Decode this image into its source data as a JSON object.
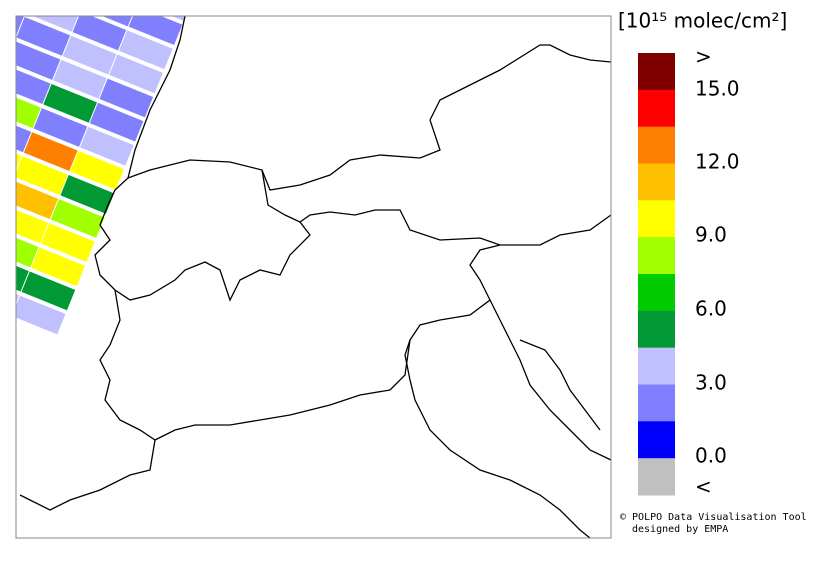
{
  "colorbar": {
    "unit": "[10¹⁵ molec/cm²]",
    "colors": [
      "#800000",
      "#ff0000",
      "#ff8000",
      "#ffc000",
      "#ffff00",
      "#a0ff00",
      "#00cc00",
      "#009933",
      "#c0c0ff",
      "#8080ff",
      "#0000ff",
      "#c0c0c0"
    ],
    "labels": [
      ">",
      "15.0",
      "12.0",
      "9.0",
      "6.0",
      "3.0",
      "0.0",
      "<"
    ]
  },
  "credits": [
    "© POLPO Data Visualisation Tool",
    "designed by EMPA"
  ]
}
